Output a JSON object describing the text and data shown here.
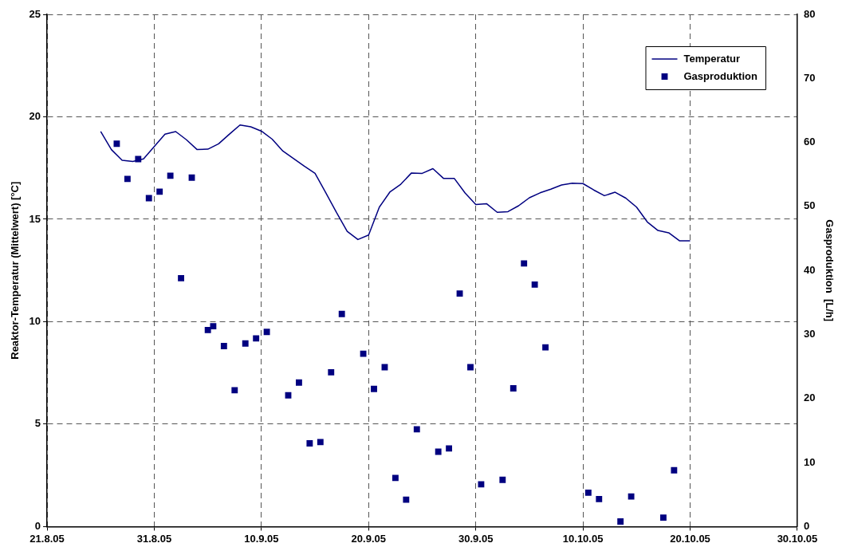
{
  "chart_data": {
    "type": "line",
    "ylabel": "Reaktor-Temperatur (Mittelwert) [°C]",
    "y2label": "Gasproduktion  [L/h]",
    "xlim": [
      "--08-21",
      "--10-30"
    ],
    "xticks": [
      {
        "value": "--08-21",
        "label": "21.8.05"
      },
      {
        "value": "--08-31",
        "label": "31.8.05"
      },
      {
        "value": "--09-10",
        "label": "10.9.05"
      },
      {
        "value": "--09-20",
        "label": "20.9.05"
      },
      {
        "value": "--09-30",
        "label": "30.9.05"
      },
      {
        "value": "--10-10",
        "label": "10.10.05"
      },
      {
        "value": "--10-20",
        "label": "20.10.05"
      },
      {
        "value": "--10-30",
        "label": "30.10.05"
      }
    ],
    "ylim": [
      0,
      25
    ],
    "yticks": [
      0,
      5,
      10,
      15,
      20,
      25
    ],
    "y2lim": [
      0,
      80
    ],
    "y2ticks": [
      0,
      10,
      20,
      30,
      40,
      50,
      60,
      70,
      80
    ],
    "grid": true,
    "legend": "top right",
    "series": [
      {
        "name": "Temperatur",
        "type": "line",
        "color": "#000080",
        "marker": "none",
        "line_style": "solid",
        "x": [
          "--08-26",
          "--08-27",
          "--08-28",
          "--08-29",
          "--08-30",
          "--08-31",
          "--09-01",
          "--09-02",
          "--09-03",
          "--09-04",
          "--09-05",
          "--09-06",
          "--09-07",
          "--09-08",
          "--09-09",
          "--09-10",
          "--09-11",
          "--09-12",
          "--09-13",
          "--09-14",
          "--09-15",
          "--09-16",
          "--09-17",
          "--09-18",
          "--09-19",
          "--09-20",
          "--09-21",
          "--09-22",
          "--09-23",
          "--09-24",
          "--09-25",
          "--09-26",
          "--09-27",
          "--09-28",
          "--09-29",
          "--09-30",
          "--10-01",
          "--10-02",
          "--10-03",
          "--10-04",
          "--10-05",
          "--10-06",
          "--10-07",
          "--10-08",
          "--10-09",
          "--10-10",
          "--10-11",
          "--10-12",
          "--10-13",
          "--10-14",
          "--10-15",
          "--10-16",
          "--10-17",
          "--10-18",
          "--10-19",
          "--10-20"
        ],
        "values": [
          19.28,
          18.4,
          17.88,
          17.82,
          17.95,
          18.55,
          19.15,
          19.28,
          18.88,
          18.4,
          18.42,
          18.68,
          19.15,
          19.6,
          19.51,
          19.3,
          18.91,
          18.33,
          17.96,
          17.59,
          17.24,
          16.3,
          15.33,
          14.41,
          14.01,
          14.23,
          15.59,
          16.34,
          16.71,
          17.26,
          17.24,
          17.47,
          16.99,
          16.99,
          16.28,
          15.72,
          15.76,
          15.34,
          15.37,
          15.66,
          16.05,
          16.29,
          16.47,
          16.67,
          16.76,
          16.74,
          16.43,
          16.15,
          16.32,
          16.03,
          15.59,
          14.87,
          14.45,
          14.34,
          13.95,
          13.95
        ]
      },
      {
        "name": "Gasproduktion",
        "type": "scatter",
        "axis": "y2",
        "color": "#000080",
        "marker": "square",
        "x": [
          "--08-27T12:00",
          "--08-28T12:00",
          "--08-29T12:00",
          "--08-30T12:00",
          "--08-31T12:00",
          "--09-01T12:00",
          "--09-02T12:00",
          "--09-03T12:00",
          "--09-05T00:00",
          "--09-05T12:00",
          "--09-06T12:00",
          "--09-07T12:00",
          "--09-08T12:00",
          "--09-09T12:00",
          "--09-10T12:00",
          "--09-12T12:00",
          "--09-13T12:00",
          "--09-14T12:00",
          "--09-15T12:00",
          "--09-16T12:00",
          "--09-17T12:00",
          "--09-19T12:00",
          "--09-20T12:00",
          "--09-21T12:00",
          "--09-22T12:00",
          "--09-23T12:00",
          "--09-24T12:00",
          "--09-26T12:00",
          "--09-27T12:00",
          "--09-28T12:00",
          "--09-29T12:00",
          "--09-30T12:00",
          "--10-02T12:00",
          "--10-03T12:00",
          "--10-04T12:00",
          "--10-05T12:00",
          "--10-06T12:00",
          "--10-10T12:00",
          "--10-11T12:00",
          "--10-13T12:00",
          "--10-14T12:00",
          "--10-17T12:00",
          "--10-18T12:00"
        ],
        "values": [
          59.8,
          54.3,
          57.4,
          51.3,
          52.3,
          54.8,
          38.8,
          54.5,
          30.7,
          31.3,
          28.2,
          21.3,
          28.6,
          29.4,
          30.4,
          20.5,
          22.5,
          13.0,
          13.2,
          24.1,
          33.2,
          27.0,
          21.5,
          24.9,
          7.6,
          4.2,
          15.2,
          11.7,
          12.2,
          36.4,
          24.9,
          6.6,
          7.3,
          21.6,
          41.1,
          37.8,
          28.0,
          5.3,
          4.3,
          0.8,
          4.7,
          1.4,
          8.8
        ]
      }
    ]
  }
}
